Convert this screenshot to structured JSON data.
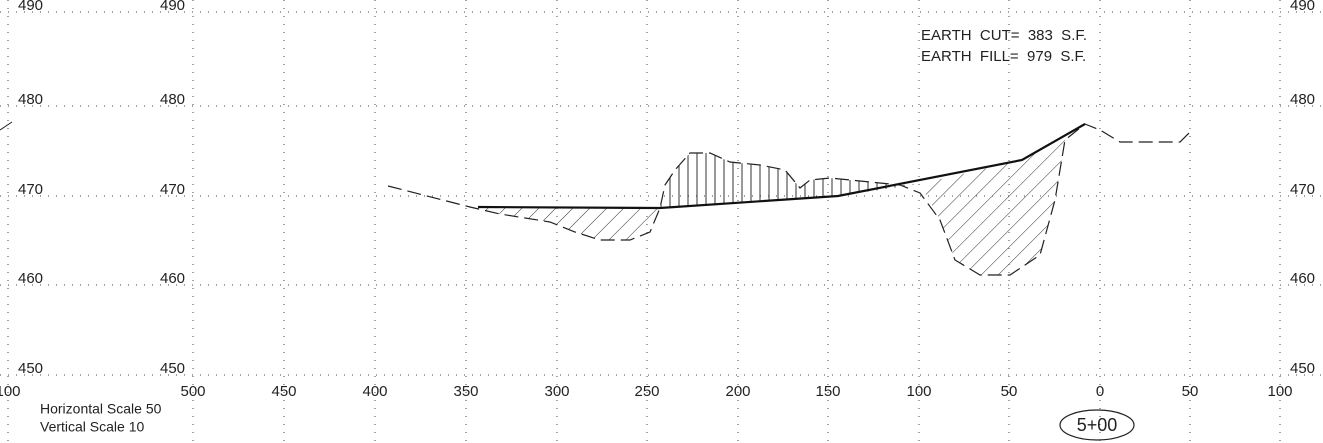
{
  "grid": {
    "y_labels_left": [
      "490",
      "480",
      "470",
      "460",
      "450"
    ],
    "y_labels_inner": [
      "490",
      "480",
      "470",
      "460",
      "450"
    ],
    "y_labels_right": [
      "490",
      "480",
      "470",
      "460",
      "450"
    ],
    "x_labels": [
      "100",
      "500",
      "450",
      "400",
      "350",
      "300",
      "250",
      "200",
      "150",
      "100",
      "50",
      "0",
      "50",
      "100"
    ]
  },
  "notes": {
    "earth_cut": "EARTH  CUT=  383  S.F.",
    "earth_fill": "EARTH  FILL=  979  S.F.",
    "horizontal_scale": "Horizontal Scale 50",
    "vertical_scale": "Vertical Scale 10"
  },
  "station": "5+00"
}
